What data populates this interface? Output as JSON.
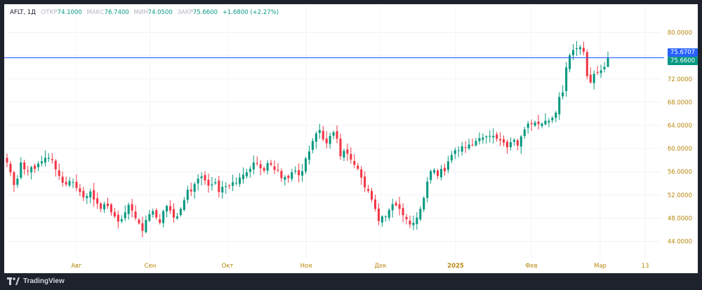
{
  "header": {
    "symbol": "AFLT, 1Д",
    "open_label": "ОТКР",
    "open_value": "74.1000",
    "high_label": "МАКС",
    "high_value": "76.7400",
    "low_label": "МИН",
    "low_value": "74.0500",
    "close_label": "ЗАКР",
    "close_value": "75.6600",
    "change": "+1.6800 (+2.27%)"
  },
  "price_badges": {
    "top": "75.6707",
    "bottom": "75.6600"
  },
  "footer": {
    "brand": "TradingView"
  },
  "colors": {
    "up": "#089981",
    "down": "#f23645",
    "line": "#2962ff",
    "badge_top": "#2962ff",
    "badge_bottom": "#089981",
    "axis_text": "#b8860b"
  },
  "chart_data": {
    "type": "candlestick",
    "symbol": "AFLT",
    "interval": "1D",
    "ylim": [
      42,
      82
    ],
    "y_ticks": [
      "44.0000",
      "48.0000",
      "52.0000",
      "56.0000",
      "60.0000",
      "64.0000",
      "68.0000",
      "72.0000",
      "76.0000",
      "80.0000"
    ],
    "x_ticks": [
      "Авг",
      "Сен",
      "Окт",
      "Ноя",
      "Дек",
      "2025",
      "Фев",
      "Мар",
      "13"
    ],
    "x_ticks_bold": [
      "2025"
    ],
    "horizontal_line": 75.67,
    "close_series": [
      57.6,
      55.9,
      53.7,
      54.8,
      57.6,
      56.4,
      56.1,
      56.8,
      56.5,
      57.4,
      57.8,
      58.4,
      58.4,
      58.0,
      56.4,
      55.3,
      54.1,
      53.8,
      54.4,
      54.2,
      53.2,
      52.5,
      51.6,
      51.8,
      52.6,
      51.2,
      50.5,
      49.6,
      50.4,
      50.1,
      49.0,
      48.3,
      47.4,
      47.8,
      49.0,
      50.3,
      49.3,
      48.0,
      47.1,
      45.8,
      47.7,
      48.7,
      49.2,
      48.1,
      47.2,
      49.2,
      50.1,
      49.3,
      48.1,
      48.3,
      49.6,
      51.1,
      52.9,
      52.6,
      53.9,
      54.8,
      55.2,
      54.5,
      53.6,
      53.8,
      54.2,
      52.5,
      53.4,
      53.5,
      53.6,
      54.2,
      54.1,
      55.0,
      55.5,
      55.9,
      56.5,
      57.6,
      57.4,
      56.6,
      56.2,
      57.5,
      57.2,
      56.3,
      56.2,
      54.9,
      55.1,
      54.9,
      55.9,
      56.2,
      55.4,
      56.1,
      58.3,
      59.5,
      61.3,
      62.6,
      63.2,
      61.6,
      60.9,
      62.2,
      62.8,
      61.7,
      58.7,
      59.6,
      59.1,
      58.1,
      57.2,
      56.5,
      55.0,
      53.3,
      52.7,
      51.2,
      49.6,
      47.5,
      48.3,
      48.3,
      49.4,
      50.4,
      50.2,
      49.6,
      48.5,
      47.8,
      46.9,
      47.2,
      48.1,
      49.6,
      51.5,
      54.3,
      56.1,
      56.3,
      55.3,
      56.5,
      56.1,
      57.8,
      58.9,
      59.7,
      59.7,
      60.4,
      60.2,
      60.7,
      60.6,
      61.3,
      61.8,
      61.9,
      62.1,
      62.2,
      62.2,
      61.7,
      61.4,
      61.0,
      60.2,
      61.1,
      61.5,
      60.5,
      62.1,
      63.3,
      64.3,
      64.2,
      64.5,
      64.2,
      64.3,
      64.8,
      64.8,
      65.3,
      66.2,
      68.9,
      69.7,
      74.0,
      76.1,
      77.0,
      77.3,
      77.5,
      76.7,
      72.5,
      71.4,
      72.9,
      73.1,
      73.5,
      74.1,
      75.66
    ],
    "last_bar": {
      "open": 74.1,
      "high": 76.74,
      "low": 74.05,
      "close": 75.66,
      "change": 1.68,
      "change_pct": 2.27
    }
  }
}
